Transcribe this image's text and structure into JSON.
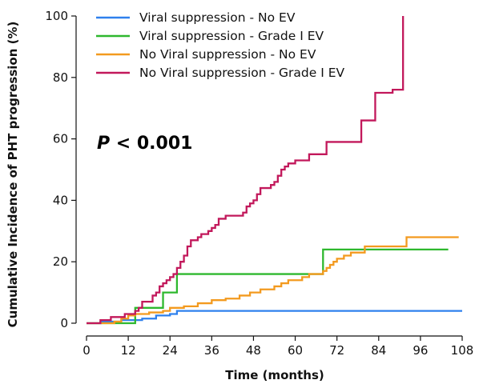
{
  "chart_data": {
    "type": "line",
    "step": true,
    "title": "",
    "xlabel": "Time (months)",
    "ylabel": "Cumulative Incidence of PHT progression (%)",
    "xlim": [
      0,
      108
    ],
    "ylim": [
      0,
      100
    ],
    "xticks": [
      0,
      12,
      24,
      36,
      48,
      60,
      72,
      84,
      96,
      108
    ],
    "yticks": [
      0,
      20,
      40,
      60,
      80,
      100
    ],
    "annotation": {
      "italic": "P",
      "rest": " < 0.001"
    },
    "legend_position": "top",
    "series": [
      {
        "name": "Viral suppression - No EV",
        "color": "#2f80ed",
        "points": [
          [
            0,
            0
          ],
          [
            4,
            0.5
          ],
          [
            10,
            1
          ],
          [
            16,
            1.5
          ],
          [
            20,
            2.5
          ],
          [
            24,
            3
          ],
          [
            26,
            4
          ],
          [
            30,
            4
          ],
          [
            108,
            4
          ]
        ]
      },
      {
        "name": "Viral suppression - Grade I EV",
        "color": "#2eb82e",
        "points": [
          [
            0,
            0
          ],
          [
            1,
            0
          ],
          [
            9,
            0
          ],
          [
            14,
            0
          ],
          [
            14,
            5
          ],
          [
            22,
            5
          ],
          [
            22,
            10
          ],
          [
            26,
            10
          ],
          [
            26,
            16
          ],
          [
            68,
            16
          ],
          [
            68,
            24
          ],
          [
            104,
            24
          ]
        ]
      },
      {
        "name": "No Viral suppression - No EV",
        "color": "#f39a1f",
        "points": [
          [
            0,
            0
          ],
          [
            8,
            0.5
          ],
          [
            10,
            1.5
          ],
          [
            12,
            2.5
          ],
          [
            14,
            3
          ],
          [
            18,
            3.5
          ],
          [
            22,
            4
          ],
          [
            24,
            5
          ],
          [
            28,
            5.5
          ],
          [
            32,
            6.5
          ],
          [
            36,
            7.5
          ],
          [
            40,
            8
          ],
          [
            44,
            9
          ],
          [
            47,
            10
          ],
          [
            50,
            11
          ],
          [
            54,
            12
          ],
          [
            56,
            13
          ],
          [
            58,
            14
          ],
          [
            62,
            15
          ],
          [
            64,
            16
          ],
          [
            68,
            17
          ],
          [
            69,
            18
          ],
          [
            70,
            19
          ],
          [
            71,
            20
          ],
          [
            72,
            21
          ],
          [
            74,
            22
          ],
          [
            76,
            23
          ],
          [
            80,
            25
          ],
          [
            90,
            25
          ],
          [
            92,
            28
          ],
          [
            107,
            28
          ]
        ]
      },
      {
        "name": "No Viral suppression - Grade I EV",
        "color": "#c2185b",
        "points": [
          [
            0,
            0
          ],
          [
            3,
            0
          ],
          [
            4,
            1
          ],
          [
            6,
            1
          ],
          [
            7,
            2
          ],
          [
            10,
            2
          ],
          [
            11,
            3
          ],
          [
            13,
            3
          ],
          [
            14,
            4
          ],
          [
            15,
            5
          ],
          [
            16,
            7
          ],
          [
            18,
            7
          ],
          [
            19,
            9
          ],
          [
            20,
            10
          ],
          [
            21,
            12
          ],
          [
            22,
            13
          ],
          [
            23,
            14
          ],
          [
            24,
            15
          ],
          [
            25,
            16
          ],
          [
            26,
            18
          ],
          [
            27,
            20
          ],
          [
            28,
            22
          ],
          [
            29,
            25
          ],
          [
            30,
            27
          ],
          [
            32,
            28
          ],
          [
            33,
            29
          ],
          [
            35,
            30
          ],
          [
            36,
            31
          ],
          [
            37,
            32
          ],
          [
            38,
            34
          ],
          [
            40,
            35
          ],
          [
            44,
            35
          ],
          [
            45,
            36
          ],
          [
            46,
            38
          ],
          [
            47,
            39
          ],
          [
            48,
            40
          ],
          [
            49,
            42
          ],
          [
            50,
            44
          ],
          [
            52,
            44
          ],
          [
            53,
            45
          ],
          [
            54,
            46
          ],
          [
            55,
            48
          ],
          [
            56,
            50
          ],
          [
            57,
            51
          ],
          [
            58,
            52
          ],
          [
            60,
            53
          ],
          [
            62,
            53
          ],
          [
            64,
            55
          ],
          [
            68,
            55
          ],
          [
            69,
            59
          ],
          [
            78,
            59
          ],
          [
            79,
            66
          ],
          [
            82,
            66
          ],
          [
            83,
            75
          ],
          [
            88,
            75
          ],
          [
            88,
            76
          ],
          [
            91,
            76
          ],
          [
            91,
            100
          ]
        ]
      }
    ]
  }
}
